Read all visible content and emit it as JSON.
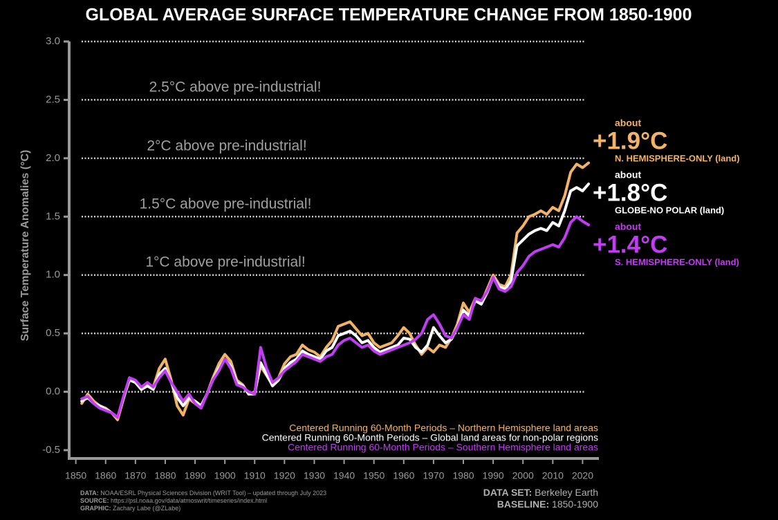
{
  "chart_data": {
    "type": "line",
    "title": "GLOBAL AVERAGE SURFACE TEMPERATURE CHANGE FROM 1850-1900",
    "y_label": "Surface Temperature Anomalies (°C)",
    "x": [
      1852,
      1854,
      1856,
      1858,
      1860,
      1862,
      1864,
      1866,
      1868,
      1870,
      1872,
      1874,
      1876,
      1878,
      1880,
      1882,
      1884,
      1886,
      1888,
      1890,
      1892,
      1894,
      1896,
      1898,
      1900,
      1902,
      1904,
      1906,
      1908,
      1910,
      1912,
      1914,
      1916,
      1918,
      1920,
      1922,
      1924,
      1926,
      1928,
      1930,
      1932,
      1934,
      1936,
      1938,
      1940,
      1942,
      1944,
      1946,
      1948,
      1950,
      1952,
      1954,
      1956,
      1958,
      1960,
      1962,
      1964,
      1966,
      1968,
      1970,
      1972,
      1974,
      1976,
      1978,
      1980,
      1982,
      1984,
      1986,
      1988,
      1990,
      1992,
      1994,
      1996,
      1998,
      2000,
      2002,
      2004,
      2006,
      2008,
      2010,
      2012,
      2014,
      2016,
      2018,
      2020,
      2022
    ],
    "series": [
      {
        "name": "Centered Running 60-Month Periods – Northern Hemisphere land areas",
        "color": "#f2b366",
        "values": [
          -0.1,
          -0.02,
          -0.08,
          -0.12,
          -0.14,
          -0.18,
          -0.24,
          -0.06,
          0.12,
          0.08,
          0.02,
          0.06,
          0.04,
          0.2,
          0.28,
          0.1,
          -0.12,
          -0.2,
          -0.06,
          -0.1,
          -0.14,
          -0.02,
          0.12,
          0.24,
          0.32,
          0.26,
          0.1,
          0.06,
          -0.02,
          0.0,
          0.22,
          0.14,
          0.06,
          0.12,
          0.24,
          0.3,
          0.32,
          0.4,
          0.36,
          0.34,
          0.3,
          0.38,
          0.44,
          0.56,
          0.58,
          0.6,
          0.54,
          0.48,
          0.5,
          0.42,
          0.38,
          0.4,
          0.42,
          0.48,
          0.55,
          0.5,
          0.4,
          0.32,
          0.38,
          0.34,
          0.4,
          0.38,
          0.46,
          0.58,
          0.76,
          0.68,
          0.8,
          0.76,
          0.88,
          1.0,
          0.92,
          0.9,
          1.0,
          1.36,
          1.42,
          1.5,
          1.52,
          1.55,
          1.52,
          1.58,
          1.55,
          1.68,
          1.88,
          1.95,
          1.92,
          1.96
        ]
      },
      {
        "name": "Centered Running 60-Month Periods – Global land areas for non-polar regions",
        "color": "#ffffff",
        "values": [
          -0.08,
          -0.05,
          -0.1,
          -0.12,
          -0.15,
          -0.18,
          -0.22,
          -0.05,
          0.1,
          0.08,
          0.02,
          0.05,
          0.02,
          0.15,
          0.2,
          0.08,
          -0.05,
          -0.12,
          -0.05,
          -0.08,
          -0.12,
          -0.02,
          0.1,
          0.2,
          0.28,
          0.22,
          0.08,
          0.05,
          -0.02,
          -0.02,
          0.25,
          0.15,
          0.05,
          0.1,
          0.2,
          0.25,
          0.28,
          0.35,
          0.32,
          0.3,
          0.28,
          0.35,
          0.38,
          0.48,
          0.5,
          0.52,
          0.48,
          0.42,
          0.44,
          0.38,
          0.34,
          0.36,
          0.38,
          0.4,
          0.46,
          0.45,
          0.38,
          0.34,
          0.4,
          0.55,
          0.48,
          0.42,
          0.45,
          0.55,
          0.7,
          0.65,
          0.78,
          0.75,
          0.85,
          0.98,
          0.9,
          0.88,
          0.95,
          1.25,
          1.3,
          1.35,
          1.38,
          1.4,
          1.38,
          1.45,
          1.42,
          1.55,
          1.72,
          1.75,
          1.72,
          1.78
        ]
      },
      {
        "name": "Centered Running 60-Month Periods – Southern Hemisphere land areas",
        "color": "#c13cf2",
        "values": [
          -0.06,
          -0.04,
          -0.1,
          -0.14,
          -0.16,
          -0.18,
          -0.22,
          -0.04,
          0.12,
          0.1,
          0.04,
          0.08,
          0.04,
          0.12,
          0.18,
          0.08,
          0.0,
          -0.08,
          -0.02,
          -0.1,
          -0.14,
          -0.02,
          0.1,
          0.18,
          0.28,
          0.2,
          0.06,
          0.04,
          0.0,
          -0.02,
          0.38,
          0.2,
          0.08,
          0.12,
          0.18,
          0.22,
          0.26,
          0.32,
          0.3,
          0.28,
          0.26,
          0.3,
          0.32,
          0.4,
          0.44,
          0.46,
          0.42,
          0.38,
          0.4,
          0.35,
          0.32,
          0.34,
          0.36,
          0.38,
          0.4,
          0.42,
          0.45,
          0.5,
          0.62,
          0.66,
          0.58,
          0.48,
          0.46,
          0.55,
          0.66,
          0.62,
          0.8,
          0.78,
          0.86,
          0.98,
          0.88,
          0.86,
          0.9,
          1.02,
          1.08,
          1.16,
          1.2,
          1.22,
          1.24,
          1.26,
          1.24,
          1.32,
          1.45,
          1.5,
          1.46,
          1.43
        ]
      }
    ],
    "xlim": [
      1848,
      2025
    ],
    "xticks": [
      1850,
      1860,
      1870,
      1880,
      1890,
      1900,
      1910,
      1920,
      1930,
      1940,
      1950,
      1960,
      1970,
      1980,
      1990,
      2000,
      2010,
      2020
    ],
    "ylim": [
      -0.5,
      3.0
    ],
    "yticks": [
      -0.5,
      {
        "value": 0,
        "label": "0.0"
      },
      0.5,
      {
        "value": 1,
        "label": "1.0"
      },
      1.5,
      {
        "value": 2,
        "label": "2.0"
      },
      2.5,
      {
        "value": 3,
        "label": "3.0"
      }
    ],
    "grid": true,
    "annotations": [
      "2.5°C above pre-industrial!",
      "2°C above pre-industrial!",
      "1.5°C above pre-industrial!",
      "1°C above pre-industrial!"
    ],
    "callouts": [
      {
        "prefix": "about",
        "value_label": "+1.9°C",
        "label": "N. HEMISPHERE-ONLY (land)"
      },
      {
        "prefix": "about",
        "value_label": "+1.8°C",
        "label": "GLOBE-NO POLAR (land)"
      },
      {
        "prefix": "about",
        "value_label": "+1.4°C",
        "label": "S. HEMISPHERE-ONLY (land)"
      }
    ],
    "footer_left": [
      {
        "key": "DATA:",
        "text": "NOAA/ESRL Physical Sciences Division (WRIT Tool) – updated through July 2023"
      },
      {
        "key": "SOURCE:",
        "text": "https://psl.noaa.gov/data/atmoswrit/timeseries/index.html"
      },
      {
        "key": "GRAPHIC:",
        "text": "Zachary Labe (@ZLabe)"
      }
    ],
    "footer_right": [
      {
        "key": "DATA SET:",
        "text": "Berkeley Earth"
      },
      {
        "key": "BASELINE:",
        "text": "1850-1900"
      }
    ]
  }
}
